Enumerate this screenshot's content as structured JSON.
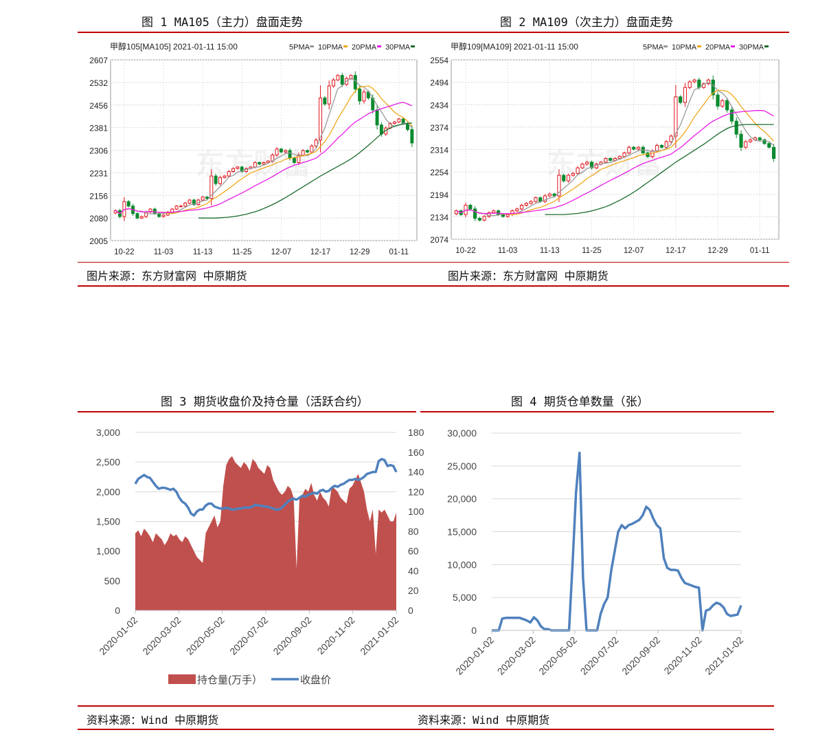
{
  "figures": {
    "fig1": {
      "title": "图 1 MA105（主力）盘面走势",
      "source": "图片来源：东方财富网 中原期货"
    },
    "fig2": {
      "title": "图 2 MA109（次主力）盘面走势",
      "source": "图片来源：东方财富网 中原期货"
    },
    "fig3": {
      "title": "图 3 期货收盘价及持仓量（活跃合约）"
    },
    "fig4": {
      "title": "图 4  期货仓单数量（张）"
    },
    "bottom_source_left": "资料来源：Wind 中原期货",
    "bottom_source_right": "资料来源：Wind 中原期货"
  },
  "colors": {
    "accent_rule": "#c00000",
    "up": "#e0141b",
    "down": "#0b8a2f",
    "ma5": "#999999",
    "ma10": "#f0a81a",
    "ma20": "#e81ce8",
    "ma30": "#1a6b2c",
    "oi_fill": "#c0504d",
    "line_blue": "#4f81bd"
  },
  "chart_data": [
    {
      "id": "fig1",
      "type": "candlestick",
      "header": "甲醇105[MA105] 2021-01-11 15:00",
      "legend": [
        "5PMA",
        "10PMA",
        "20PMA",
        "30PMA"
      ],
      "yticks": [
        "2607",
        "2532",
        "2456",
        "2381",
        "2306",
        "2231",
        "2156",
        "2080",
        "2005"
      ],
      "ylim": [
        2005,
        2607
      ],
      "xticks": [
        "10-22",
        "11-03",
        "11-13",
        "11-25",
        "12-07",
        "12-17",
        "12-29",
        "01-11"
      ],
      "xtick_index": [
        2,
        11,
        20,
        29,
        38,
        47,
        56,
        65
      ],
      "closes": [
        2105,
        2085,
        2135,
        2120,
        2095,
        2080,
        2085,
        2100,
        2110,
        2095,
        2085,
        2090,
        2100,
        2110,
        2120,
        2120,
        2130,
        2140,
        2125,
        2140,
        2150,
        2145,
        2220,
        2195,
        2215,
        2220,
        2235,
        2245,
        2250,
        2235,
        2245,
        2250,
        2265,
        2260,
        2265,
        2270,
        2290,
        2310,
        2300,
        2305,
        2280,
        2265,
        2290,
        2305,
        2300,
        2320,
        2340,
        2480,
        2460,
        2520,
        2540,
        2555,
        2525,
        2545,
        2555,
        2510,
        2470,
        2500,
        2480,
        2440,
        2390,
        2360,
        2380,
        2395,
        2400,
        2410,
        2395,
        2375,
        2330
      ],
      "ma30": [
        2080,
        2080,
        2080,
        2080,
        2080,
        2081,
        2082,
        2083,
        2085,
        2087,
        2090,
        2093,
        2097,
        2101,
        2106,
        2112,
        2118,
        2125,
        2132,
        2140,
        2148,
        2157,
        2166,
        2175,
        2184,
        2193,
        2202,
        2211,
        2220,
        2228,
        2236,
        2244,
        2252,
        2260,
        2268,
        2277,
        2287,
        2298,
        2310,
        2322,
        2335,
        2348,
        2361,
        2372,
        2380,
        2386,
        2390,
        2393,
        2395,
        2397
      ]
    },
    {
      "id": "fig2",
      "type": "candlestick",
      "header": "甲醇109[MA109] 2021-01-11 15:00",
      "legend": [
        "5PMA",
        "10PMA",
        "20PMA",
        "30PMA"
      ],
      "yticks": [
        "2554",
        "2494",
        "2434",
        "2374",
        "2314",
        "2254",
        "2194",
        "2134",
        "2074"
      ],
      "ylim": [
        2074,
        2554
      ],
      "xticks": [
        "10-22",
        "11-03",
        "11-13",
        "11-25",
        "12-07",
        "12-17",
        "12-29",
        "01-11"
      ],
      "xtick_index": [
        2,
        11,
        20,
        29,
        38,
        47,
        56,
        65
      ],
      "closes": [
        2150,
        2140,
        2165,
        2155,
        2130,
        2125,
        2135,
        2145,
        2150,
        2140,
        2135,
        2140,
        2150,
        2155,
        2165,
        2170,
        2175,
        2185,
        2175,
        2190,
        2195,
        2190,
        2245,
        2230,
        2245,
        2250,
        2265,
        2275,
        2280,
        2265,
        2275,
        2280,
        2290,
        2285,
        2290,
        2295,
        2305,
        2320,
        2315,
        2320,
        2305,
        2295,
        2310,
        2325,
        2320,
        2335,
        2350,
        2455,
        2440,
        2480,
        2495,
        2500,
        2480,
        2490,
        2500,
        2460,
        2430,
        2445,
        2420,
        2390,
        2355,
        2320,
        2335,
        2340,
        2345,
        2340,
        2330,
        2320,
        2290
      ],
      "ma30": [
        2140,
        2140,
        2140,
        2140,
        2140,
        2141,
        2142,
        2143,
        2145,
        2147,
        2150,
        2153,
        2157,
        2161,
        2166,
        2172,
        2178,
        2185,
        2192,
        2200,
        2208,
        2217,
        2226,
        2235,
        2244,
        2253,
        2262,
        2271,
        2280,
        2288,
        2296,
        2304,
        2312,
        2320,
        2328,
        2337,
        2346,
        2355,
        2363,
        2370,
        2375,
        2378,
        2380,
        2381,
        2381,
        2381,
        2381,
        2381,
        2381,
        2381
      ]
    },
    {
      "id": "fig3",
      "type": "area",
      "left_yticks": [
        "3,000",
        "2,500",
        "2,000",
        "1,500",
        "1,000",
        "500",
        "0"
      ],
      "right_yticks": [
        "180",
        "160",
        "140",
        "120",
        "100",
        "80",
        "60",
        "40",
        "20",
        "0"
      ],
      "left_ylim": [
        0,
        3000
      ],
      "right_ylim": [
        0,
        180
      ],
      "xticks": [
        "2020-01-02",
        "2020-03-02",
        "2020-05-02",
        "2020-07-02",
        "2020-09-02",
        "2020-11-02",
        "2021-01-02"
      ],
      "legend": [
        "持仓量(万手）",
        "收盘价"
      ],
      "series": [
        {
          "name": "持仓量(万手）",
          "axis": "left",
          "values": [
            1300,
            1350,
            1250,
            1380,
            1320,
            1250,
            1150,
            1300,
            1250,
            1200,
            1100,
            1180,
            1300,
            1250,
            1280,
            1200,
            1150,
            1250,
            1200,
            1100,
            1000,
            900,
            850,
            800,
            1300,
            1400,
            1500,
            1600,
            1400,
            1500,
            2100,
            2450,
            2550,
            2600,
            2500,
            2450,
            2400,
            2500,
            2450,
            2350,
            2550,
            2500,
            2400,
            2350,
            2300,
            2450,
            2400,
            2200,
            2100,
            2000,
            1950,
            2000,
            2100,
            2050,
            1900,
            700,
            1900,
            1950,
            2050,
            2000,
            2150,
            1950,
            1850,
            2000,
            1900,
            1850,
            1750,
            2100,
            2050,
            2000,
            1900,
            1850,
            1800,
            2050,
            2100,
            2200,
            2300,
            2150,
            2000,
            1700,
            1500,
            1700,
            950,
            1700,
            1650,
            1700,
            1600,
            1500,
            1500,
            1650
          ]
        },
        {
          "name": "收盘价",
          "axis": "right",
          "values": [
            128,
            133,
            135,
            137,
            135,
            134,
            130,
            126,
            123,
            124,
            124,
            123,
            122,
            123,
            120,
            114,
            110,
            108,
            104,
            98,
            96,
            100,
            102,
            102,
            106,
            108,
            108,
            105,
            104,
            103,
            103,
            104,
            103,
            102,
            102,
            103,
            103,
            104,
            104,
            104,
            105,
            107,
            106,
            106,
            105,
            105,
            104,
            103,
            102,
            102,
            104,
            107,
            110,
            112,
            113,
            112,
            114,
            116,
            115,
            117,
            118,
            119,
            118,
            121,
            122,
            120,
            121,
            124,
            126,
            125,
            127,
            128,
            130,
            132,
            132,
            133,
            132,
            133,
            135,
            138,
            139,
            140,
            140,
            151,
            153,
            152,
            146,
            147,
            146,
            140
          ]
        }
      ]
    },
    {
      "id": "fig4",
      "type": "line",
      "yticks": [
        "30,000",
        "25,000",
        "20,000",
        "15,000",
        "10,000",
        "5,000",
        "0"
      ],
      "ylim": [
        0,
        30000
      ],
      "xticks": [
        "2020-01-02",
        "2020-03-02",
        "2020-05-02",
        "2020-07-02",
        "2020-09-02",
        "2020-11-02",
        "2021-01-02"
      ],
      "series": [
        {
          "name": "",
          "values": [
            0,
            0,
            0,
            1800,
            1900,
            1900,
            1900,
            1900,
            1900,
            1700,
            1500,
            1200,
            2000,
            1500,
            600,
            200,
            200,
            0,
            0,
            0,
            0,
            0,
            0,
            10000,
            21000,
            27000,
            8000,
            0,
            0,
            0,
            0,
            2500,
            4000,
            5000,
            9000,
            12000,
            15000,
            16000,
            15500,
            16000,
            16200,
            16500,
            16800,
            17500,
            18800,
            18300,
            17000,
            16000,
            15500,
            11000,
            9500,
            9200,
            9200,
            9100,
            8000,
            7200,
            7000,
            6800,
            6600,
            6500,
            0,
            3000,
            3200,
            3800,
            4200,
            4000,
            3500,
            2500,
            2200,
            2300,
            2400,
            3800
          ]
        }
      ]
    }
  ]
}
